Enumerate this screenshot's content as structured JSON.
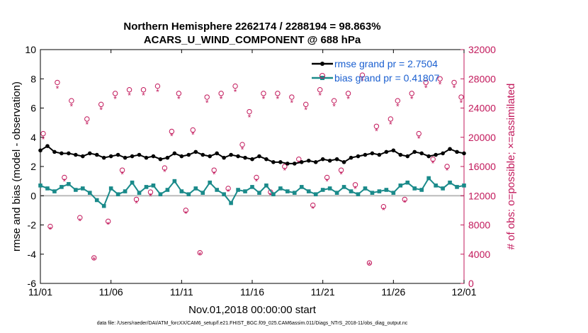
{
  "chart_data": {
    "type": "line",
    "title_line1": "Northern Hemisphere 2262174 / 2288194 = 98.863%",
    "title_line2": "ACARS_U_WIND_COMPONENT @ 688 hPa",
    "xlabel": "Nov.01,2018 00:00:00 start",
    "ylabel_left": "rmse and bias (model - observation)",
    "ylabel_right": "# of obs: o=possible; ×=assimilated",
    "x_ticks": [
      "11/01",
      "11/06",
      "11/11",
      "11/16",
      "11/21",
      "11/26",
      "12/01"
    ],
    "x_range_days": [
      0,
      30
    ],
    "y_left_range": [
      -6,
      10
    ],
    "y_left_ticks": [
      "-6",
      "-4",
      "-2",
      "0",
      "2",
      "4",
      "6",
      "8",
      "10"
    ],
    "y_right_range": [
      0,
      32000
    ],
    "y_right_ticks": [
      "0",
      "4000",
      "8000",
      "12000",
      "16000",
      "20000",
      "24000",
      "28000",
      "32000"
    ],
    "legend": {
      "rmse": "rmse grand pr = 2.7504",
      "bias": "bias grand pr = 0.41807"
    },
    "footer": "data file: /Users/raeder/DAI/ATM_forcXX/CAM6_setup/f.e21.FHIST_BGC.f09_025.CAM6assim.011/Diags_NTrS_2018-11/obs_diag_output.nc",
    "series_rmse": {
      "name": "rmse",
      "color": "#000000",
      "x": [
        0,
        0.5,
        1,
        1.5,
        2,
        2.5,
        3,
        3.5,
        4,
        4.5,
        5,
        5.5,
        6,
        6.5,
        7,
        7.5,
        8,
        8.5,
        9,
        9.5,
        10,
        10.5,
        11,
        11.5,
        12,
        12.5,
        13,
        13.5,
        14,
        14.5,
        15,
        15.5,
        16,
        16.5,
        17,
        17.5,
        18,
        18.5,
        19,
        19.5,
        20,
        20.5,
        21,
        21.5,
        22,
        22.5,
        23,
        23.5,
        24,
        24.5,
        25,
        25.5,
        26,
        26.5,
        27,
        27.5,
        28,
        28.5,
        29,
        29.5,
        30
      ],
      "values": [
        3.1,
        3.4,
        3.0,
        2.9,
        2.9,
        2.8,
        2.7,
        2.9,
        2.8,
        2.6,
        2.7,
        2.8,
        2.6,
        2.7,
        2.8,
        2.6,
        2.7,
        2.5,
        2.6,
        2.9,
        2.7,
        2.8,
        3.0,
        2.8,
        2.7,
        2.9,
        2.6,
        2.8,
        2.7,
        2.6,
        2.5,
        2.7,
        2.5,
        2.3,
        2.3,
        2.2,
        2.2,
        2.3,
        2.4,
        2.3,
        2.5,
        2.4,
        2.5,
        2.3,
        2.6,
        2.7,
        2.8,
        2.9,
        2.8,
        3.0,
        3.1,
        2.8,
        2.7,
        3.0,
        2.9,
        2.7,
        2.8,
        2.9,
        3.2,
        3.0,
        2.9
      ]
    },
    "series_bias": {
      "name": "bias",
      "color": "#1a8a8a",
      "x": [
        0,
        0.5,
        1,
        1.5,
        2,
        2.5,
        3,
        3.5,
        4,
        4.5,
        5,
        5.5,
        6,
        6.5,
        7,
        7.5,
        8,
        8.5,
        9,
        9.5,
        10,
        10.5,
        11,
        11.5,
        12,
        12.5,
        13,
        13.5,
        14,
        14.5,
        15,
        15.5,
        16,
        16.5,
        17,
        17.5,
        18,
        18.5,
        19,
        19.5,
        20,
        20.5,
        21,
        21.5,
        22,
        22.5,
        23,
        23.5,
        24,
        24.5,
        25,
        25.5,
        26,
        26.5,
        27,
        27.5,
        28,
        28.5,
        29,
        29.5,
        30
      ],
      "values": [
        0.7,
        0.5,
        0.3,
        0.6,
        0.8,
        0.4,
        0.5,
        0.2,
        -0.3,
        -0.7,
        0.5,
        0.1,
        0.3,
        0.9,
        0.2,
        0.6,
        0.7,
        0.1,
        0.4,
        1.0,
        0.3,
        0.1,
        0.5,
        0.2,
        0.9,
        0.4,
        0.1,
        -0.5,
        0.4,
        0.3,
        0.6,
        0.2,
        0.7,
        0.1,
        0.5,
        0.3,
        0.2,
        0.6,
        0.3,
        0.1,
        0.4,
        0.5,
        0.2,
        0.6,
        0.3,
        0.1,
        0.5,
        0.2,
        0.3,
        0.4,
        0.2,
        0.7,
        0.9,
        0.5,
        0.4,
        1.2,
        0.7,
        0.5,
        0.9,
        0.6,
        0.7
      ]
    },
    "series_possible": {
      "name": "possible obs (o)",
      "color": "#c2185b",
      "x": [
        0.2,
        0.7,
        1.2,
        1.7,
        2.2,
        2.8,
        3.3,
        3.8,
        4.3,
        4.8,
        5.3,
        5.8,
        6.3,
        6.8,
        7.3,
        7.8,
        8.3,
        8.8,
        9.3,
        9.8,
        10.3,
        10.8,
        11.3,
        11.8,
        12.3,
        12.8,
        13.3,
        13.8,
        14.3,
        14.8,
        15.3,
        15.8,
        16.3,
        16.8,
        17.3,
        17.8,
        18.3,
        18.8,
        19.3,
        19.8,
        20.3,
        20.8,
        21.3,
        21.8,
        22.3,
        22.8,
        23.3,
        23.8,
        24.3,
        24.8,
        25.3,
        25.8,
        26.3,
        26.8,
        27.3,
        27.8,
        28.3,
        28.8,
        29.3,
        29.8
      ],
      "values": [
        20500,
        7800,
        27500,
        14500,
        25000,
        9000,
        22500,
        3500,
        24500,
        8500,
        26000,
        15500,
        26500,
        11500,
        26500,
        12500,
        27000,
        15800,
        20800,
        26000,
        10000,
        21000,
        4200,
        25500,
        15500,
        26000,
        13000,
        27000,
        19000,
        23500,
        14500,
        26000,
        12500,
        26000,
        16000,
        25500,
        17000,
        24500,
        10700,
        26500,
        14500,
        25000,
        15500,
        26000,
        13500,
        28500,
        2800,
        21500,
        10500,
        22500,
        25000,
        11500,
        26000,
        20500,
        27500,
        17000,
        28000,
        16000,
        27500,
        25500
      ],
      "colors_note": "circles"
    },
    "series_assimilated": {
      "name": "assimilated obs (x)",
      "color": "#c2185b",
      "x": [
        0.2,
        0.7,
        1.2,
        1.7,
        2.2,
        2.8,
        3.3,
        3.8,
        4.3,
        4.8,
        5.3,
        5.8,
        6.3,
        6.8,
        7.3,
        7.8,
        8.3,
        8.8,
        9.3,
        9.8,
        10.3,
        10.8,
        11.3,
        11.8,
        12.3,
        12.8,
        13.3,
        13.8,
        14.3,
        14.8,
        15.3,
        15.8,
        16.3,
        16.8,
        17.3,
        17.8,
        18.3,
        18.8,
        19.3,
        19.8,
        20.3,
        20.8,
        21.3,
        21.8,
        22.3,
        22.8,
        23.3,
        23.8,
        24.3,
        24.8,
        25.3,
        25.8,
        26.3,
        26.8,
        27.3,
        27.8,
        28.3,
        28.8,
        29.3,
        29.8
      ],
      "values": [
        19800,
        7400,
        26700,
        14000,
        24300,
        8600,
        21800,
        3300,
        23800,
        8100,
        25300,
        15000,
        25800,
        11000,
        25800,
        12000,
        26300,
        15300,
        20200,
        25300,
        9600,
        20400,
        4000,
        24800,
        15000,
        25300,
        12600,
        26300,
        18400,
        22800,
        14000,
        25300,
        12100,
        25300,
        15500,
        24800,
        16500,
        23800,
        10300,
        25800,
        14000,
        24300,
        15000,
        25300,
        13000,
        27800,
        2600,
        20900,
        10100,
        21800,
        24300,
        11100,
        25300,
        19900,
        26800,
        16500,
        27300,
        15500,
        26800,
        24800
      ],
      "colors_note": "asterisks"
    }
  }
}
